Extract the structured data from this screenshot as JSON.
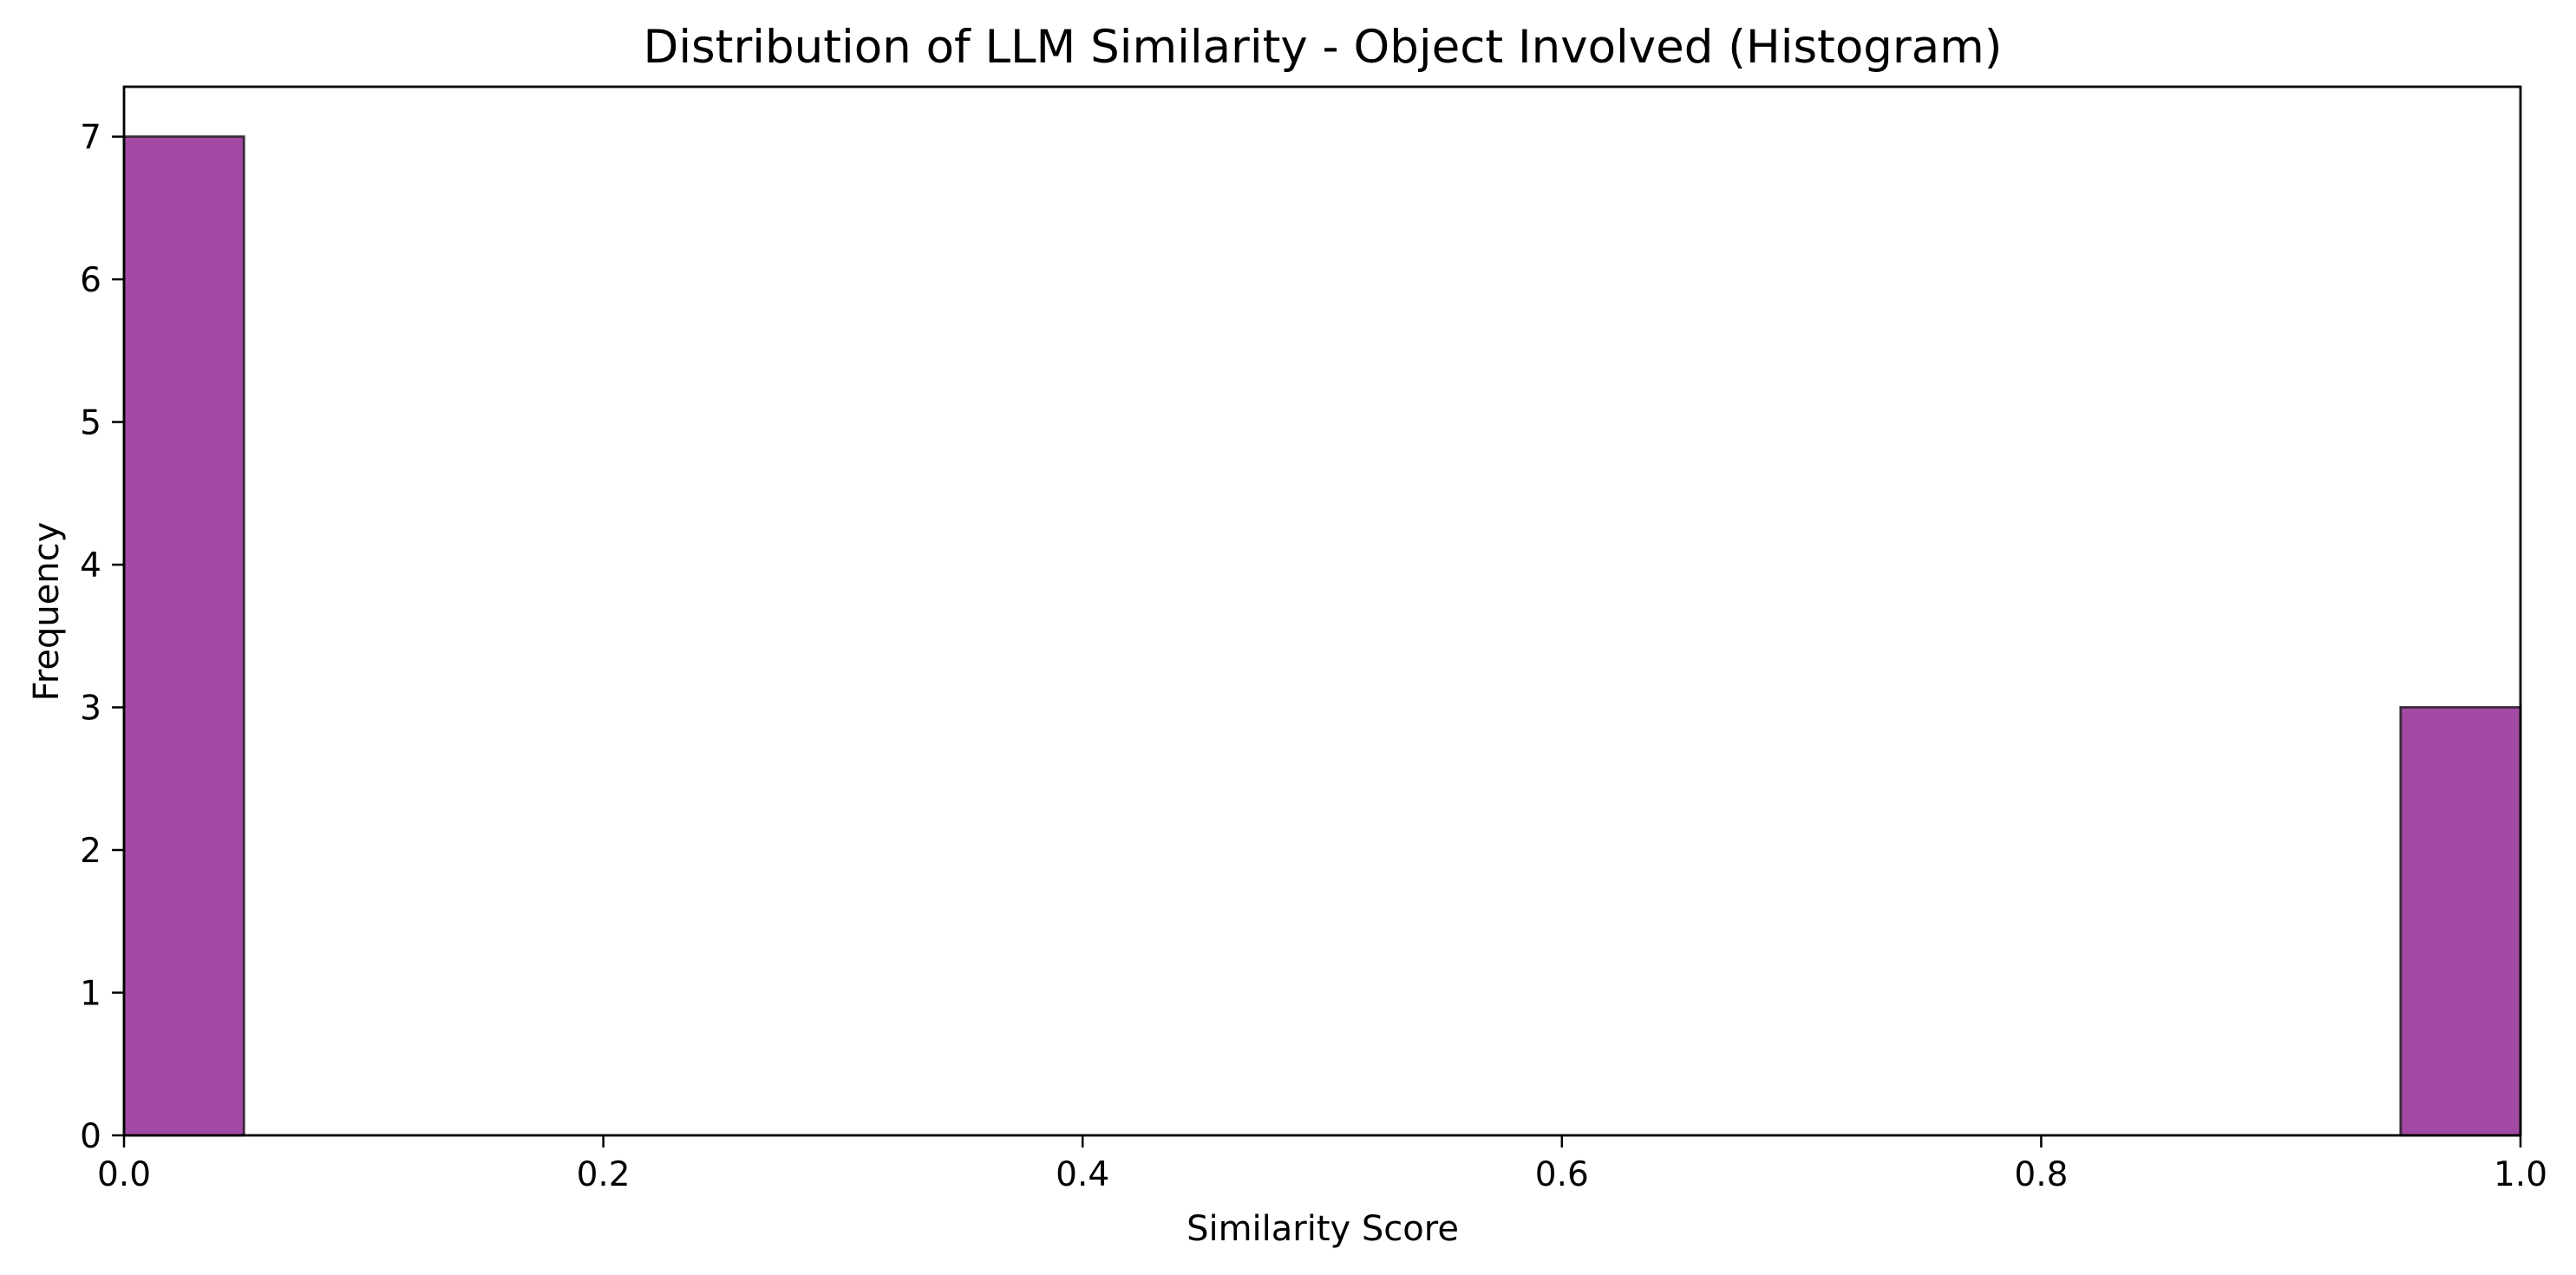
{
  "chart_data": {
    "type": "bar",
    "subtype": "histogram",
    "title": "Distribution of LLM Similarity - Object Involved (Histogram)",
    "xlabel": "Similarity Score",
    "ylabel": "Frequency",
    "xlim": [
      0.0,
      1.0
    ],
    "ylim": [
      0,
      7.35
    ],
    "xticks": [
      0.0,
      0.2,
      0.4,
      0.6,
      0.8,
      1.0
    ],
    "xtick_labels": [
      "0.0",
      "0.2",
      "0.4",
      "0.6",
      "0.8",
      "1.0"
    ],
    "yticks": [
      0,
      1,
      2,
      3,
      4,
      5,
      6,
      7
    ],
    "ytick_labels": [
      "0",
      "1",
      "2",
      "3",
      "4",
      "5",
      "6",
      "7"
    ],
    "bins": [
      {
        "x0": 0.0,
        "x1": 0.05,
        "count": 7
      },
      {
        "x0": 0.95,
        "x1": 1.0,
        "count": 3
      }
    ],
    "bar_color": "#A24AA3",
    "bar_edge_color": "#3A2A3A",
    "grid": false,
    "legend": "none"
  }
}
